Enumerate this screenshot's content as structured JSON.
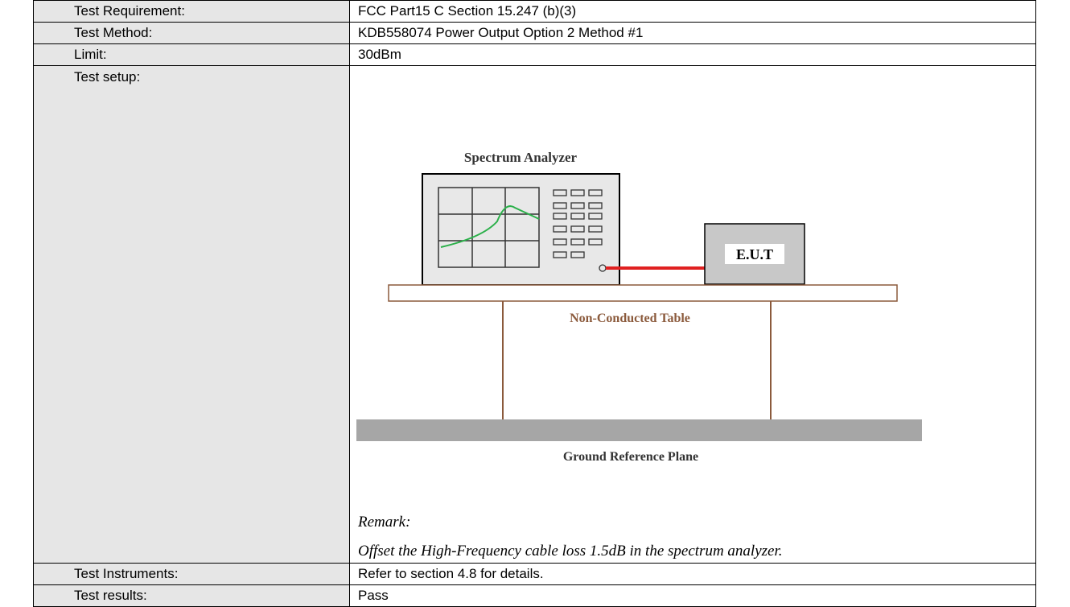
{
  "table": {
    "rows": [
      [
        "Test Requirement:",
        "FCC Part15 C Section 15.247 (b)(3)"
      ],
      [
        "Test Method:",
        "KDB558074 Power Output Option 2 Method #1"
      ],
      [
        "Limit:",
        "30dBm"
      ],
      [
        "Test setup:",
        ""
      ],
      [
        "Test Instruments:",
        "Refer to section 4.8 for details."
      ],
      [
        "Test results:",
        "Pass"
      ]
    ]
  },
  "setup": {
    "analyzer_label": "Spectrum Analyzer",
    "eut_label": "E.U.T",
    "table_label": "Non-Conducted Table",
    "ground_label": "Ground Reference Plane",
    "remark_title": "Remark:",
    "remark_text": "Offset the High-Frequency cable loss 1.5dB in the spectrum analyzer."
  }
}
